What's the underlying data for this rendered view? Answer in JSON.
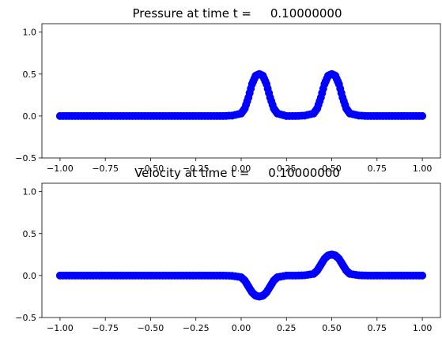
{
  "chart_data": [
    {
      "type": "scatter",
      "title": "Pressure at time t =     0.10000000",
      "xlabel": "",
      "ylabel": "",
      "xlim": [
        -1.1,
        1.1
      ],
      "ylim": [
        -0.5,
        1.1
      ],
      "xticks": [
        -1.0,
        -0.75,
        -0.5,
        -0.25,
        0.0,
        0.25,
        0.5,
        0.75,
        1.0
      ],
      "xtick_labels": [
        "−1.00",
        "−0.75",
        "−0.50",
        "−0.25",
        "0.00",
        "0.25",
        "0.50",
        "0.75",
        "1.00"
      ],
      "yticks": [
        -0.5,
        0.0,
        0.5,
        1.0
      ],
      "ytick_labels": [
        "−0.5",
        "0.0",
        "0.5",
        "1.0"
      ],
      "grid": false,
      "marker_color": "#0000ff",
      "series": [
        {
          "x": [
            -1.0,
            -0.95,
            -0.9,
            -0.85,
            -0.8,
            -0.75,
            -0.7,
            -0.65,
            -0.6,
            -0.55,
            -0.5,
            -0.45,
            -0.4,
            -0.35,
            -0.3,
            -0.25,
            -0.2,
            -0.15,
            -0.1,
            -0.05,
            0.0,
            0.02,
            0.04,
            0.06,
            0.08,
            0.1,
            0.12,
            0.14,
            0.16,
            0.18,
            0.2,
            0.25,
            0.3,
            0.35,
            0.4,
            0.42,
            0.44,
            0.46,
            0.48,
            0.5,
            0.52,
            0.54,
            0.56,
            0.58,
            0.6,
            0.65,
            0.7,
            0.75,
            0.8,
            0.85,
            0.9,
            0.95,
            1.0
          ],
          "y": [
            0,
            0,
            0,
            0,
            0,
            0,
            0,
            0,
            0,
            0,
            0,
            0,
            0,
            0,
            0,
            0,
            0,
            0,
            0,
            0.005,
            0.03,
            0.09,
            0.22,
            0.38,
            0.48,
            0.5,
            0.48,
            0.38,
            0.22,
            0.09,
            0.03,
            0,
            0,
            0.005,
            0.03,
            0.09,
            0.22,
            0.38,
            0.48,
            0.5,
            0.48,
            0.38,
            0.22,
            0.09,
            0.03,
            0.005,
            0,
            0,
            0,
            0,
            0,
            0,
            0
          ]
        }
      ]
    },
    {
      "type": "scatter",
      "title": "Velocity at time t =     0.10000000",
      "xlabel": "",
      "ylabel": "",
      "xlim": [
        -1.1,
        1.1
      ],
      "ylim": [
        -0.5,
        1.1
      ],
      "xticks": [
        -1.0,
        -0.75,
        -0.5,
        -0.25,
        0.0,
        0.25,
        0.5,
        0.75,
        1.0
      ],
      "xtick_labels": [
        "−1.00",
        "−0.75",
        "−0.50",
        "−0.25",
        "0.00",
        "0.25",
        "0.50",
        "0.75",
        "1.00"
      ],
      "yticks": [
        -0.5,
        0.0,
        0.5,
        1.0
      ],
      "ytick_labels": [
        "−0.5",
        "0.0",
        "0.5",
        "1.0"
      ],
      "grid": false,
      "marker_color": "#0000ff",
      "series": [
        {
          "x": [
            -1.0,
            -0.95,
            -0.9,
            -0.85,
            -0.8,
            -0.75,
            -0.7,
            -0.65,
            -0.6,
            -0.55,
            -0.5,
            -0.45,
            -0.4,
            -0.35,
            -0.3,
            -0.25,
            -0.2,
            -0.15,
            -0.1,
            -0.05,
            0.0,
            0.02,
            0.04,
            0.06,
            0.08,
            0.1,
            0.12,
            0.14,
            0.16,
            0.18,
            0.2,
            0.25,
            0.3,
            0.35,
            0.4,
            0.42,
            0.44,
            0.46,
            0.48,
            0.5,
            0.52,
            0.54,
            0.56,
            0.58,
            0.6,
            0.65,
            0.7,
            0.75,
            0.8,
            0.85,
            0.9,
            0.95,
            1.0
          ],
          "y": [
            0,
            0,
            0,
            0,
            0,
            0,
            0,
            0,
            0,
            0,
            0,
            0,
            0,
            0,
            0,
            0,
            0,
            0,
            0,
            -0.003,
            -0.02,
            -0.06,
            -0.13,
            -0.2,
            -0.24,
            -0.25,
            -0.24,
            -0.2,
            -0.13,
            -0.06,
            -0.02,
            0,
            0,
            0.003,
            0.02,
            0.06,
            0.13,
            0.2,
            0.24,
            0.25,
            0.24,
            0.2,
            0.13,
            0.06,
            0.02,
            0.003,
            0,
            0,
            0,
            0,
            0,
            0,
            0
          ]
        }
      ]
    }
  ]
}
